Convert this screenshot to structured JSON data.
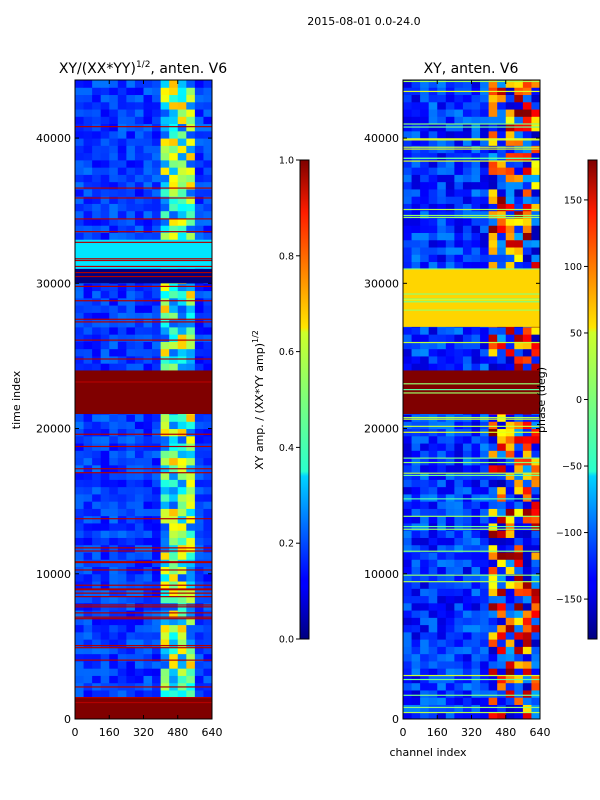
{
  "figure": {
    "suptitle": "2015-08-01 0.0-24.0"
  },
  "chart_data": [
    {
      "type": "heatmap",
      "title": "XY/(XX*YY)^1/2, anten. V6",
      "title_main": "XY/(XX*YY)",
      "title_sup": "1/2",
      "title_rest": ", anten. V6",
      "xlabel": "",
      "ylabel": "time index",
      "xlim": [
        0,
        640
      ],
      "ylim": [
        0,
        44000
      ],
      "xticks": [
        0,
        160,
        320,
        480,
        640
      ],
      "yticks": [
        0,
        10000,
        20000,
        30000,
        40000
      ],
      "colorbar": {
        "label_main": "XY amp. / (XX*YY amp)",
        "label_sup": "1/2",
        "range": [
          0.0,
          1.0
        ],
        "ticks": [
          "0.0",
          "0.2",
          "0.4",
          "0.6",
          "0.8",
          "1.0"
        ],
        "tick_values": [
          0.0,
          0.2,
          0.4,
          0.6,
          0.8,
          1.0
        ]
      },
      "bands": [
        {
          "t0": 21000,
          "t1": 24000,
          "value": 1.0
        },
        {
          "t0": 0,
          "t1": 1500,
          "value": 1.0
        },
        {
          "t0": 30000,
          "t1": 31000,
          "value": 0.0
        },
        {
          "t0": 31000,
          "t1": 33000,
          "value": 0.35
        }
      ],
      "active_channel_range": [
        400,
        560
      ]
    },
    {
      "type": "heatmap",
      "title": "XY, anten. V6",
      "xlabel": "channel index",
      "ylabel": "",
      "xlim": [
        0,
        640
      ],
      "ylim": [
        0,
        44000
      ],
      "xticks": [
        0,
        160,
        320,
        480,
        640
      ],
      "yticks": [
        0,
        10000,
        20000,
        30000,
        40000
      ],
      "colorbar": {
        "label": "phase (deg)",
        "range": [
          -180,
          180
        ],
        "ticks": [
          "150",
          "100",
          "50",
          "0",
          "−50",
          "−100",
          "−150"
        ],
        "tick_values": [
          150,
          100,
          50,
          0,
          -50,
          -100,
          -150
        ]
      },
      "bands": [
        {
          "t0": 21000,
          "t1": 24000,
          "value": 180
        },
        {
          "t0": 27000,
          "t1": 31000,
          "value": 60
        }
      ],
      "active_channel_range": [
        400,
        640
      ]
    }
  ]
}
